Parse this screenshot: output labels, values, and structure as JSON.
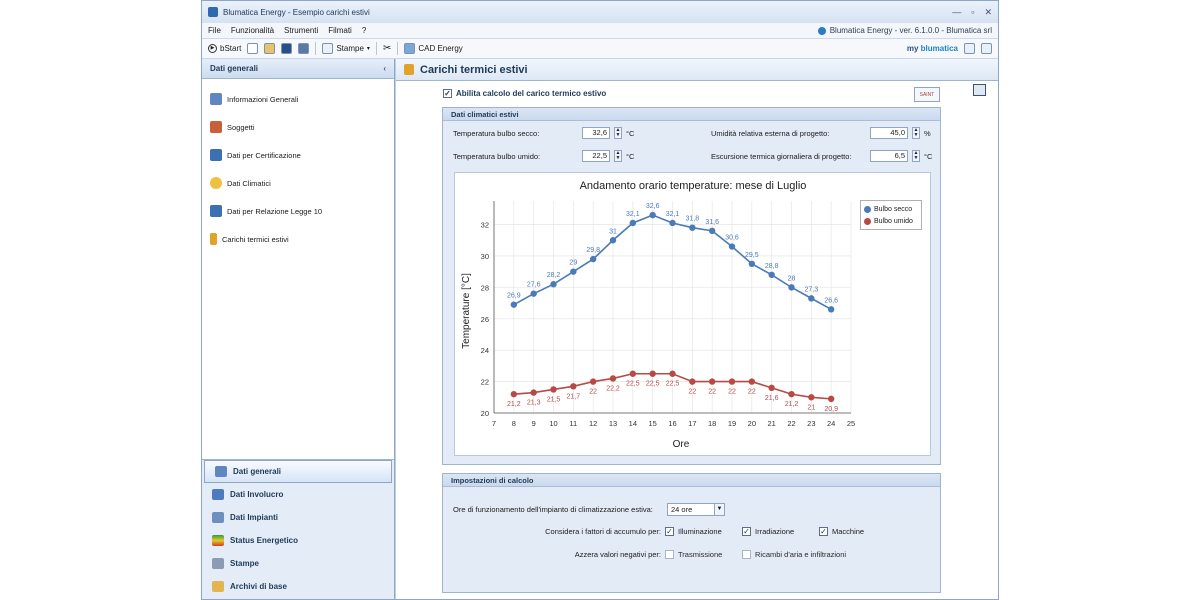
{
  "window": {
    "title": "Blumatica Energy - Esempio carichi estivi"
  },
  "menu": {
    "items": [
      "File",
      "Funzionalità",
      "Strumenti",
      "Filmati",
      "?"
    ],
    "version": "Blumatica Energy - ver. 6.1.0.0 - Blumatica srl"
  },
  "toolbar": {
    "bstart": "bStart",
    "stampe": "Stampe",
    "cad": "CAD Energy",
    "brand_my": "my",
    "brand_name": "blumatica"
  },
  "left": {
    "header": "Dati generali",
    "items": [
      "Informazioni Generali",
      "Soggetti",
      "Dati per Certificazione",
      "Dati Climatici",
      "Dati per Relazione Legge 10",
      "Carichi termici estivi"
    ],
    "nav": [
      "Dati generali",
      "Dati Involucro",
      "Dati Impianti",
      "Status Energetico",
      "Stampe",
      "Archivi di base"
    ]
  },
  "main": {
    "title": "Carichi termici estivi",
    "enable": "Abilita calcolo del carico termico estivo",
    "saint_label": "SAINT",
    "climate": {
      "title": "Dati climatici estivi",
      "dry_label": "Temperatura bulbo secco:",
      "dry_value": "32,6",
      "dry_unit": "°C",
      "wet_label": "Temperatura bulbo umido:",
      "wet_value": "22,5",
      "wet_unit": "°C",
      "humidity_label": "Umidità relativa esterna di progetto:",
      "humidity_value": "45,0",
      "humidity_unit": "%",
      "excursion_label": "Escursione termica giornaliera di progetto:",
      "excursion_value": "6,5",
      "excursion_unit": "°C"
    },
    "calc": {
      "title": "Impostazioni di calcolo",
      "hours_label": "Ore di funzionamento dell'impianto di climatizzazione estiva:",
      "hours_value": "24 ore",
      "accum_label": "Considera i fattori di accumulo per:",
      "accum": [
        "Illuminazione",
        "Irradiazione",
        "Macchine"
      ],
      "neg_label": "Azzera valori negativi per:",
      "neg": [
        "Trasmissione",
        "Ricambi d'aria e infiltrazioni"
      ]
    }
  },
  "chart_data": {
    "type": "line",
    "title": "Andamento orario temperature: mese di Luglio",
    "xlabel": "Ore",
    "ylabel": "Temperature [°C]",
    "x": [
      8,
      9,
      10,
      11,
      12,
      13,
      14,
      15,
      16,
      17,
      18,
      19,
      20,
      21,
      22,
      23,
      24
    ],
    "xlim": [
      7,
      25
    ],
    "ylim": [
      20,
      33.5
    ],
    "xticks": [
      7,
      8,
      9,
      10,
      11,
      12,
      13,
      14,
      15,
      16,
      17,
      18,
      19,
      20,
      21,
      22,
      23,
      24,
      25
    ],
    "yticks": [
      20,
      22,
      24,
      26,
      28,
      30,
      32
    ],
    "grid": true,
    "legend": "top-right",
    "series": [
      {
        "name": "Bulbo secco",
        "color": "#4a7ab8",
        "values": [
          26.9,
          27.6,
          28.2,
          29,
          29.8,
          31,
          32.1,
          32.6,
          32.1,
          31.8,
          31.6,
          30.6,
          29.5,
          28.8,
          28,
          27.3,
          26.6
        ],
        "labels": [
          "26,9",
          "27,6",
          "28,2",
          "29",
          "29,8",
          "31",
          "32,1",
          "32,6",
          "32,1",
          "31,8",
          "31,6",
          "30,6",
          "29,5",
          "28,8",
          "28",
          "27,3",
          "26,6"
        ]
      },
      {
        "name": "Bulbo umido",
        "color": "#b84a46",
        "values": [
          21.2,
          21.3,
          21.5,
          21.7,
          22,
          22.2,
          22.5,
          22.5,
          22.5,
          22,
          22,
          22,
          22,
          21.6,
          21.2,
          21,
          20.9
        ],
        "labels": [
          "21,2",
          "21,3",
          "21,5",
          "21,7",
          "22",
          "22,2",
          "22,5",
          "22,5",
          "22,5",
          "22",
          "22",
          "22",
          "22",
          "21,6",
          "21,2",
          "21",
          "20,9"
        ]
      }
    ]
  }
}
